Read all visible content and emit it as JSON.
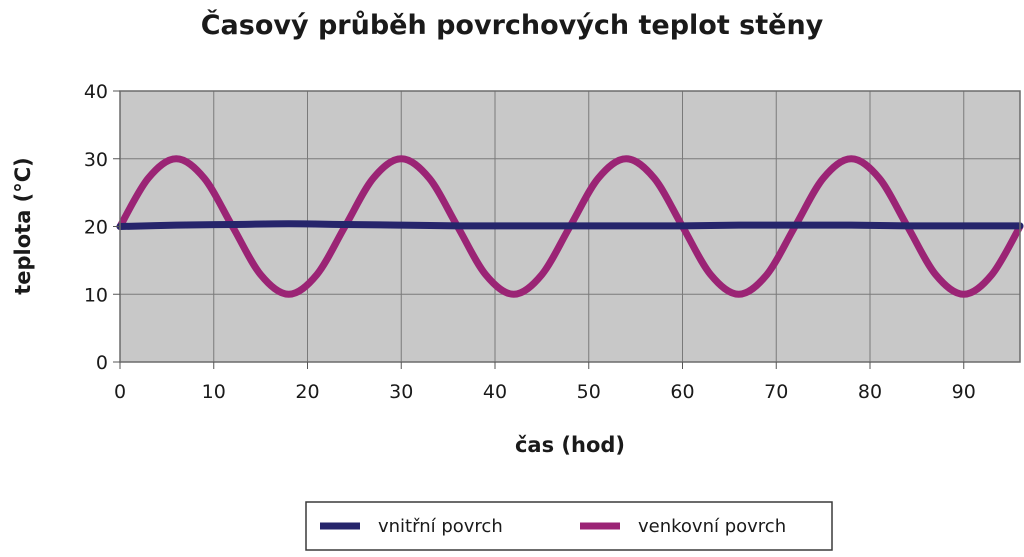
{
  "chart_data": {
    "type": "line",
    "title": "Časový průběh povrchových teplot stěny",
    "xlabel": "čas (hod)",
    "ylabel": "teplota (°C)",
    "xlim": [
      0,
      96
    ],
    "ylim": [
      0,
      40
    ],
    "x_ticks": [
      0,
      10,
      20,
      30,
      40,
      50,
      60,
      70,
      80,
      90
    ],
    "y_ticks": [
      0,
      10,
      20,
      30,
      40
    ],
    "grid": true,
    "legend_position": "bottom",
    "series": [
      {
        "name": "vnitřní povrch",
        "color": "#26256b",
        "x": [
          0,
          6,
          12,
          18,
          24,
          30,
          36,
          42,
          48,
          54,
          60,
          66,
          72,
          78,
          84,
          90,
          96
        ],
        "y": [
          20,
          20.2,
          20.3,
          20.4,
          20.3,
          20.2,
          20.1,
          20.1,
          20.1,
          20.1,
          20.1,
          20.2,
          20.2,
          20.2,
          20.1,
          20.1,
          20.1
        ]
      },
      {
        "name": "venkovní povrch",
        "color": "#9b2475",
        "x": [
          0,
          3,
          6,
          9,
          12,
          15,
          18,
          21,
          24,
          27,
          30,
          33,
          36,
          39,
          42,
          45,
          48,
          51,
          54,
          57,
          60,
          63,
          66,
          69,
          72,
          75,
          78,
          81,
          84,
          87,
          90,
          93,
          96
        ],
        "y": [
          20,
          27.1,
          30,
          27.1,
          20,
          12.9,
          10,
          12.9,
          20,
          27.1,
          30,
          27.1,
          20,
          12.9,
          10,
          12.9,
          20,
          27.1,
          30,
          27.1,
          20,
          12.9,
          10,
          12.9,
          20,
          27.1,
          30,
          27.1,
          20,
          12.9,
          10,
          12.9,
          20
        ]
      }
    ]
  }
}
